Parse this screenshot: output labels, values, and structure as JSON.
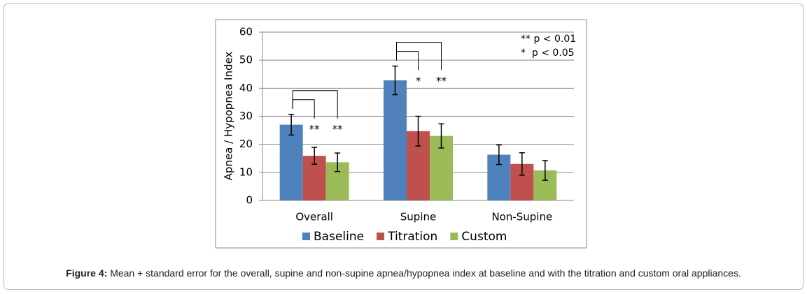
{
  "chart_data": {
    "type": "bar",
    "categories": [
      "Overall",
      "Supine",
      "Non-Supine"
    ],
    "y_label": "Apnea / Hypopnea Index",
    "ylim": [
      0,
      60
    ],
    "yticks": [
      0,
      10,
      20,
      30,
      40,
      50,
      60
    ],
    "grid": true,
    "series": [
      {
        "name": "Baseline",
        "color": "#4f81bd",
        "values": [
          27,
          42.8,
          16.3
        ],
        "errors": [
          3.7,
          5.1,
          3.5
        ],
        "markers": [
          null,
          null,
          null
        ]
      },
      {
        "name": "Titration",
        "color": "#c0504d",
        "values": [
          15.9,
          24.7,
          13
        ],
        "errors": [
          3,
          5.3,
          4
        ],
        "markers": [
          "**",
          "*",
          null
        ]
      },
      {
        "name": "Custom",
        "color": "#9bbb59",
        "values": [
          13.6,
          23,
          10.7
        ],
        "errors": [
          3.3,
          4.3,
          3.5
        ],
        "markers": [
          "**",
          "**",
          null
        ]
      }
    ],
    "notes": [
      "** p < 0.01",
      "*  p < 0.05"
    ]
  },
  "caption": {
    "label": "Figure 4:",
    "text": "Mean + standard error for the overall, supine and non-supine apnea/hypopnea index at baseline and with the titration and custom oral appliances."
  }
}
